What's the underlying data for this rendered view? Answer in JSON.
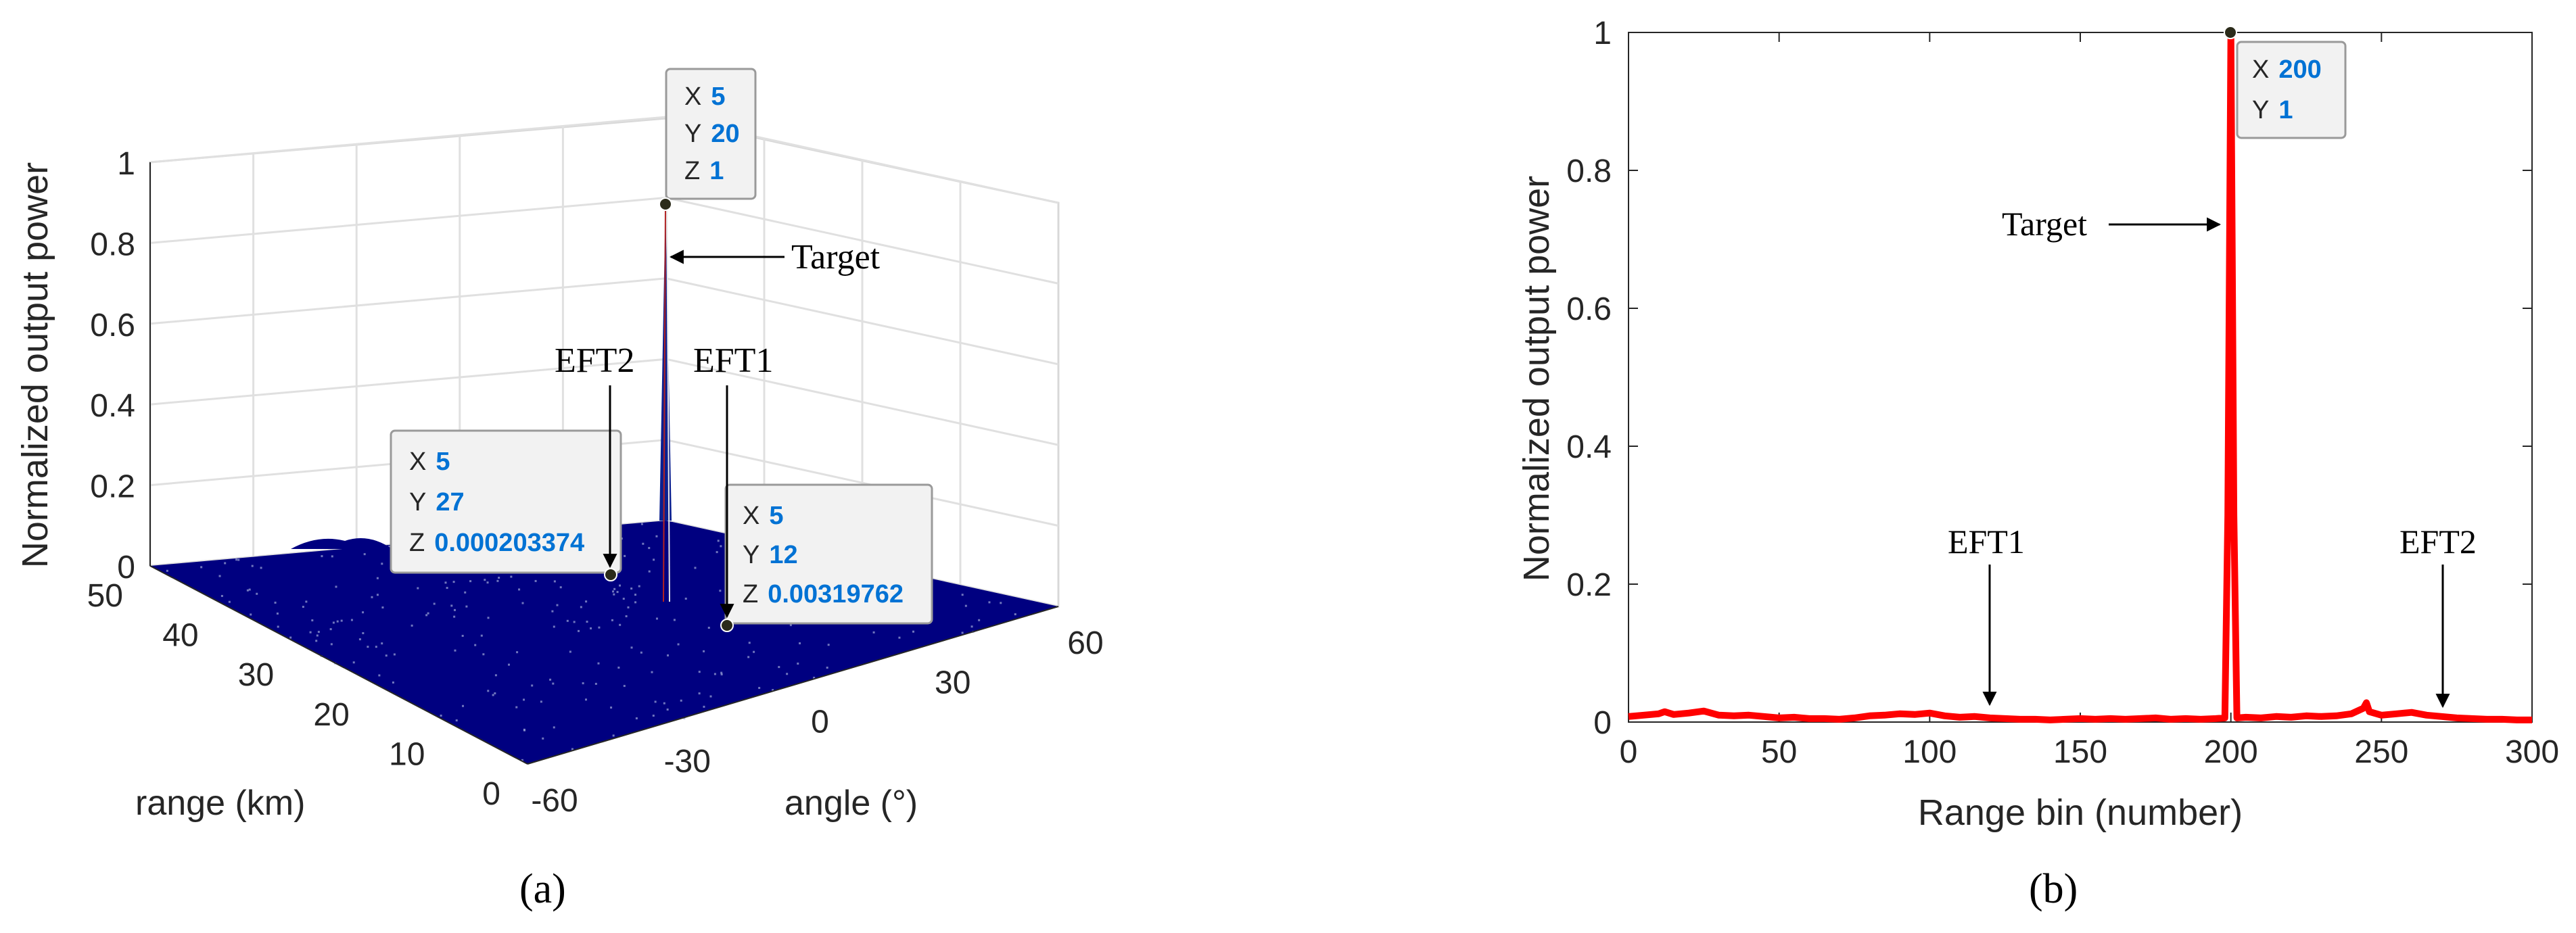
{
  "chart_data": [
    {
      "panel_label": "(a)",
      "type": "surface3d",
      "zlabel": "Normalized output power",
      "xlabel": "angle (°)",
      "ylabel": "range (km)",
      "z_ticks": [
        "0",
        "0.2",
        "0.4",
        "0.6",
        "0.8",
        "1"
      ],
      "angle_ticks": [
        "-60",
        "-30",
        "0",
        "30",
        "60"
      ],
      "range_ticks": [
        "0",
        "10",
        "20",
        "30",
        "40",
        "50"
      ],
      "zlim": [
        0,
        1
      ],
      "xlim": [
        -60,
        60
      ],
      "ylim": [
        0,
        50
      ],
      "surface_color": "#000080",
      "datatips": [
        {
          "name": "Target",
          "rows": [
            {
              "k": "X",
              "v": "5"
            },
            {
              "k": "Y",
              "v": "20"
            },
            {
              "k": "Z",
              "v": "1"
            }
          ]
        },
        {
          "name": "EFT2",
          "rows": [
            {
              "k": "X",
              "v": "5"
            },
            {
              "k": "Y",
              "v": "27"
            },
            {
              "k": "Z",
              "v": "0.000203374"
            }
          ]
        },
        {
          "name": "EFT1",
          "rows": [
            {
              "k": "X",
              "v": "5"
            },
            {
              "k": "Y",
              "v": "12"
            },
            {
              "k": "Z",
              "v": "0.00319762"
            }
          ]
        }
      ],
      "annotations": [
        "Target",
        "EFT2",
        "EFT1"
      ]
    },
    {
      "panel_label": "(b)",
      "type": "line",
      "xlabel": "Range bin (number)",
      "ylabel": "Normalized output power",
      "xlim": [
        0,
        300
      ],
      "ylim": [
        0,
        1
      ],
      "x_ticks": [
        "0",
        "50",
        "100",
        "150",
        "200",
        "250",
        "300"
      ],
      "y_ticks": [
        "0",
        "0.2",
        "0.4",
        "0.6",
        "0.8",
        "1"
      ],
      "series": [
        {
          "color": "#ff0000",
          "x": [
            0,
            5,
            10,
            12,
            15,
            20,
            25,
            30,
            35,
            40,
            45,
            50,
            55,
            60,
            65,
            70,
            75,
            80,
            85,
            90,
            95,
            100,
            105,
            110,
            115,
            120,
            125,
            130,
            135,
            140,
            145,
            150,
            155,
            160,
            165,
            170,
            175,
            180,
            185,
            190,
            195,
            198,
            199,
            200,
            201,
            202,
            205,
            210,
            215,
            220,
            225,
            230,
            235,
            240,
            244,
            245,
            246,
            250,
            255,
            260,
            265,
            270,
            275,
            280,
            285,
            290,
            295,
            300
          ],
          "y": [
            0.008,
            0.01,
            0.012,
            0.015,
            0.011,
            0.013,
            0.016,
            0.01,
            0.009,
            0.01,
            0.008,
            0.006,
            0.007,
            0.005,
            0.005,
            0.004,
            0.006,
            0.009,
            0.01,
            0.012,
            0.011,
            0.013,
            0.009,
            0.007,
            0.008,
            0.006,
            0.005,
            0.004,
            0.004,
            0.003,
            0.004,
            0.005,
            0.004,
            0.005,
            0.004,
            0.005,
            0.006,
            0.004,
            0.005,
            0.004,
            0.005,
            0.006,
            0.3,
            1,
            0.3,
            0.006,
            0.007,
            0.006,
            0.008,
            0.007,
            0.009,
            0.008,
            0.009,
            0.012,
            0.02,
            0.028,
            0.015,
            0.01,
            0.012,
            0.014,
            0.01,
            0.008,
            0.006,
            0.005,
            0.004,
            0.004,
            0.003,
            0.003
          ]
        }
      ],
      "datatip": {
        "rows": [
          {
            "k": "X",
            "v": "200"
          },
          {
            "k": "Y",
            "v": "1"
          }
        ]
      },
      "annotations": [
        "Target",
        "EFT1",
        "EFT2"
      ]
    }
  ]
}
